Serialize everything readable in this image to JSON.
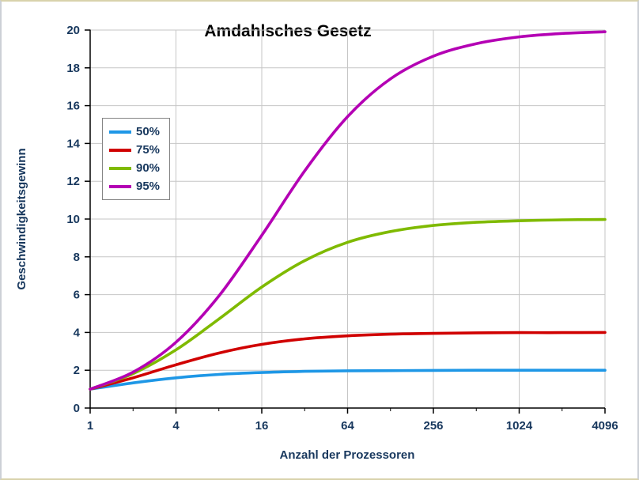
{
  "frame": {
    "background": "#ffffff",
    "border_side_color": "#ccd0d6",
    "border_topbottom_color": "#d8d2ac"
  },
  "chart_data": {
    "type": "line",
    "title": "Amdahlsches Gesetz",
    "xlabel": "Anzahl der Prozessoren",
    "ylabel": "Geschwindigkeitsgewinn",
    "x_scale": "log2",
    "x": [
      1,
      2,
      4,
      8,
      16,
      32,
      64,
      128,
      256,
      512,
      1024,
      2048,
      4096
    ],
    "x_tick_values": [
      1,
      4,
      16,
      64,
      256,
      1024,
      4096
    ],
    "x_tick_labels": [
      "1",
      "4",
      "16",
      "64",
      "256",
      "1024",
      "4096"
    ],
    "ylim": [
      0,
      20
    ],
    "y_tick_step": 2,
    "y_tick_labels": [
      "0",
      "2",
      "4",
      "6",
      "8",
      "10",
      "12",
      "14",
      "16",
      "18",
      "20"
    ],
    "grid": true,
    "grid_color": "#c6c6c6",
    "axis_color": "#000000",
    "tick_label_color": "#17375d",
    "title_color": "#000000",
    "line_width": 3.6,
    "legend": {
      "position": "upper-left",
      "border_color": "#848484",
      "background": "#ffffff"
    },
    "series": [
      {
        "name": "50%",
        "color": "#1e97e6",
        "values": [
          1,
          1.33,
          1.6,
          1.78,
          1.88,
          1.94,
          1.97,
          1.98,
          1.99,
          2.0,
          2.0,
          2.0,
          2.0
        ]
      },
      {
        "name": "75%",
        "color": "#d00000",
        "values": [
          1,
          1.6,
          2.29,
          2.91,
          3.37,
          3.66,
          3.82,
          3.91,
          3.95,
          3.98,
          3.99,
          3.99,
          4.0
        ]
      },
      {
        "name": "90%",
        "color": "#7fba00",
        "values": [
          1,
          1.82,
          3.08,
          4.71,
          6.4,
          7.8,
          8.77,
          9.34,
          9.66,
          9.83,
          9.91,
          9.96,
          9.98
        ]
      },
      {
        "name": "95%",
        "color": "#b400b4",
        "values": [
          1,
          1.9,
          3.48,
          5.93,
          9.14,
          12.55,
          15.42,
          17.42,
          18.62,
          19.28,
          19.64,
          19.82,
          19.91
        ]
      }
    ]
  }
}
